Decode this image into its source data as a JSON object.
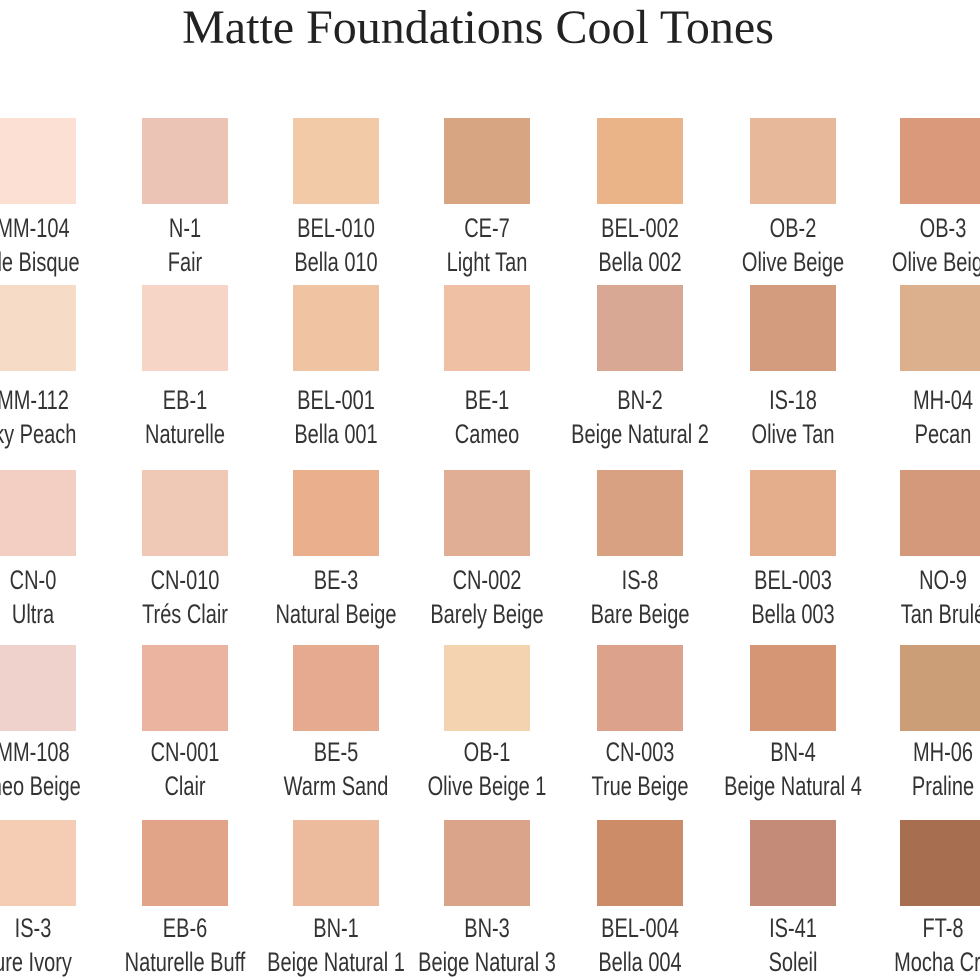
{
  "title": "Matte Foundations Cool Tones",
  "rows": [
    [
      {
        "code": "MM-104",
        "name": "ale Bisque",
        "color": "#fce0d4"
      },
      {
        "code": "N-1",
        "name": "Fair",
        "color": "#ecc4b6"
      },
      {
        "code": "BEL-010",
        "name": "Bella 010",
        "color": "#f2caa7"
      },
      {
        "code": "CE-7",
        "name": "Light Tan",
        "color": "#d8a582"
      },
      {
        "code": "BEL-002",
        "name": "Bella 002",
        "color": "#eab488"
      },
      {
        "code": "OB-2",
        "name": "Olive Beige",
        "color": "#e8b89a"
      },
      {
        "code": "OB-3",
        "name": "Olive Beige",
        "color": "#d9997a"
      }
    ],
    [
      {
        "code": "MM-112",
        "name": "lky Peach",
        "color": "#f6dcc6"
      },
      {
        "code": "EB-1",
        "name": "Naturelle",
        "color": "#f6d5c7"
      },
      {
        "code": "BEL-001",
        "name": "Bella 001",
        "color": "#f0c4a2"
      },
      {
        "code": "BE-1",
        "name": "Cameo",
        "color": "#f0c0a4"
      },
      {
        "code": "BN-2",
        "name": "Beige Natural 2",
        "color": "#d8a894"
      },
      {
        "code": "IS-18",
        "name": "Olive Tan",
        "color": "#d49c7e"
      },
      {
        "code": "MH-04",
        "name": "Pecan",
        "color": "#dcb08c"
      }
    ],
    [
      {
        "code": "CN-0",
        "name": "Ultra",
        "color": "#f2cfc2"
      },
      {
        "code": "CN-010",
        "name": "Trés Clair",
        "color": "#f0c8b6"
      },
      {
        "code": "BE-3",
        "name": "Natural Beige",
        "color": "#eab08e"
      },
      {
        "code": "CN-002",
        "name": "Barely Beige",
        "color": "#e0ae94"
      },
      {
        "code": "IS-8",
        "name": "Bare Beige",
        "color": "#d8a282"
      },
      {
        "code": "BEL-003",
        "name": "Bella 003",
        "color": "#e4ae8c"
      },
      {
        "code": "NO-9",
        "name": "Tan Brulé",
        "color": "#d4987a"
      }
    ],
    [
      {
        "code": "MM-108",
        "name": "meo Beige",
        "color": "#f0d2cc"
      },
      {
        "code": "CN-001",
        "name": "Clair",
        "color": "#eab4a0"
      },
      {
        "code": "BE-5",
        "name": "Warm Sand",
        "color": "#e6aa90"
      },
      {
        "code": "OB-1",
        "name": "Olive Beige 1",
        "color": "#f4d4b0"
      },
      {
        "code": "CN-003",
        "name": "True Beige",
        "color": "#dca28c"
      },
      {
        "code": "BN-4",
        "name": "Beige Natural 4",
        "color": "#d49674"
      },
      {
        "code": "MH-06",
        "name": "Praline",
        "color": "#cc9e78"
      }
    ],
    [
      {
        "code": "IS-3",
        "name": "ure Ivory",
        "color": "#f4cdb4"
      },
      {
        "code": "EB-6",
        "name": "Naturelle Buff",
        "color": "#e2a488"
      },
      {
        "code": "BN-1",
        "name": "Beige Natural 1",
        "color": "#ecba9c"
      },
      {
        "code": "BN-3",
        "name": "Beige Natural 3",
        "color": "#daa48a"
      },
      {
        "code": "BEL-004",
        "name": "Bella 004",
        "color": "#cc8c68"
      },
      {
        "code": "IS-41",
        "name": "Soleil",
        "color": "#c48c78"
      },
      {
        "code": "FT-8",
        "name": "Mocha Cre",
        "color": "#a86e50"
      }
    ]
  ]
}
